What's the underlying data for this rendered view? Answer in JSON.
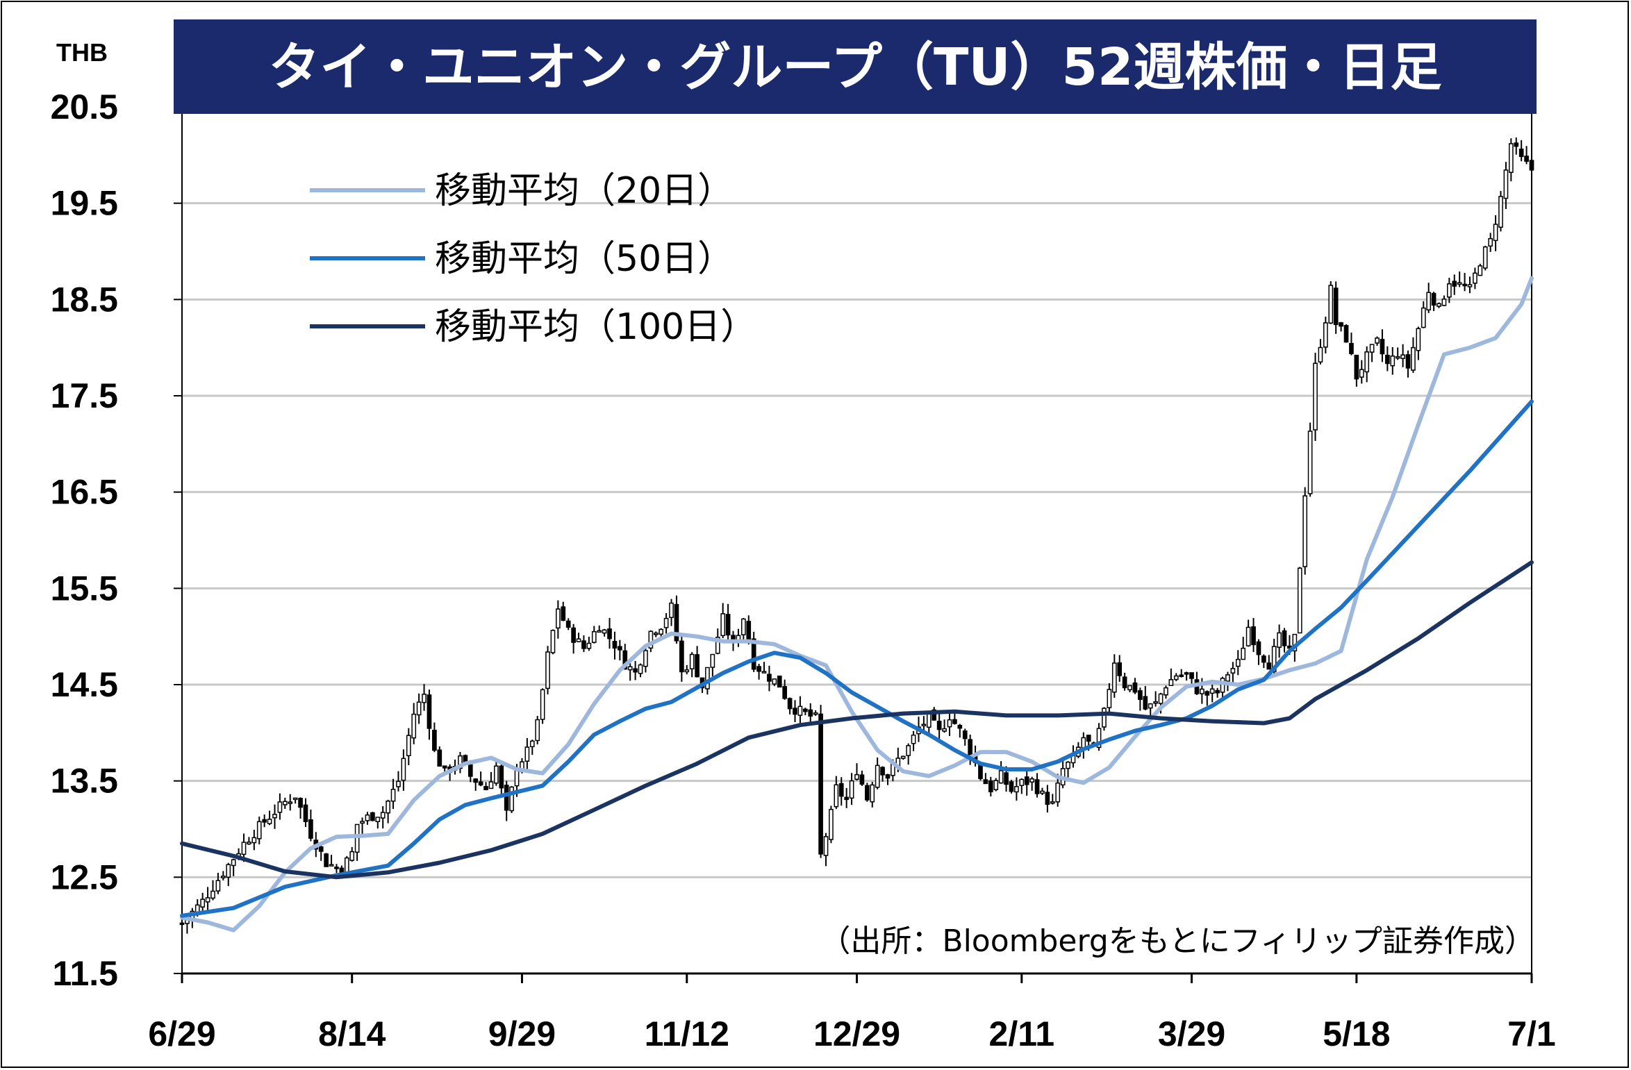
{
  "chart_data": {
    "type": "candlestick",
    "title": "タイ・ユニオン・グループ（TU）52週株価・日足",
    "unit_label": "THB",
    "source": "（出所：Bloombergをもとにフィリップ証券作成）",
    "ylim": [
      11.5,
      20.5
    ],
    "y_ticks": [
      "20.5",
      "19.5",
      "18.5",
      "17.5",
      "16.5",
      "15.5",
      "14.5",
      "13.5",
      "12.5",
      "11.5"
    ],
    "x_ticks": [
      "6/29",
      "8/14",
      "9/29",
      "11/12",
      "12/29",
      "2/11",
      "3/29",
      "5/18",
      "7/1"
    ],
    "grid": true,
    "legend_position": "top-left",
    "colors": {
      "title_bg": "#1a2a6c",
      "candle_up": "#ffffff",
      "candle_down": "#000000",
      "ma20": "#9db8dc",
      "ma50": "#1f72c4",
      "ma100": "#1a3360",
      "grid": "#c8c8c8"
    },
    "series": [
      {
        "name": "移動平均（20日）",
        "key": "ma20",
        "points": [
          [
            0,
            12.08
          ],
          [
            5,
            12.03
          ],
          [
            10,
            11.95
          ],
          [
            15,
            12.2
          ],
          [
            20,
            12.55
          ],
          [
            25,
            12.8
          ],
          [
            30,
            12.92
          ],
          [
            35,
            12.93
          ],
          [
            40,
            12.95
          ],
          [
            45,
            13.3
          ],
          [
            50,
            13.55
          ],
          [
            55,
            13.68
          ],
          [
            60,
            13.74
          ],
          [
            65,
            13.62
          ],
          [
            70,
            13.58
          ],
          [
            75,
            13.88
          ],
          [
            80,
            14.3
          ],
          [
            85,
            14.65
          ],
          [
            90,
            14.9
          ],
          [
            95,
            15.03
          ],
          [
            100,
            15.0
          ],
          [
            105,
            14.95
          ],
          [
            110,
            14.95
          ],
          [
            115,
            14.92
          ],
          [
            120,
            14.8
          ],
          [
            125,
            14.7
          ],
          [
            130,
            14.22
          ],
          [
            135,
            13.82
          ],
          [
            140,
            13.6
          ],
          [
            145,
            13.55
          ],
          [
            150,
            13.66
          ],
          [
            155,
            13.8
          ],
          [
            160,
            13.8
          ],
          [
            165,
            13.7
          ],
          [
            170,
            13.54
          ],
          [
            175,
            13.48
          ],
          [
            180,
            13.64
          ],
          [
            185,
            13.96
          ],
          [
            190,
            14.26
          ],
          [
            195,
            14.48
          ],
          [
            200,
            14.53
          ],
          [
            205,
            14.5
          ],
          [
            210,
            14.56
          ],
          [
            215,
            14.65
          ],
          [
            220,
            14.72
          ],
          [
            225,
            14.85
          ],
          [
            230,
            15.8
          ],
          [
            235,
            16.45
          ],
          [
            240,
            17.2
          ],
          [
            245,
            17.93
          ],
          [
            250,
            18.0
          ],
          [
            255,
            18.1
          ],
          [
            260,
            18.45
          ],
          [
            262,
            18.72
          ]
        ]
      },
      {
        "name": "移動平均（50日）",
        "key": "ma50",
        "points": [
          [
            0,
            12.1
          ],
          [
            10,
            12.18
          ],
          [
            20,
            12.4
          ],
          [
            30,
            12.52
          ],
          [
            40,
            12.62
          ],
          [
            45,
            12.85
          ],
          [
            50,
            13.1
          ],
          [
            55,
            13.25
          ],
          [
            60,
            13.32
          ],
          [
            70,
            13.45
          ],
          [
            75,
            13.7
          ],
          [
            80,
            13.98
          ],
          [
            85,
            14.12
          ],
          [
            90,
            14.25
          ],
          [
            95,
            14.32
          ],
          [
            100,
            14.47
          ],
          [
            105,
            14.62
          ],
          [
            110,
            14.74
          ],
          [
            115,
            14.83
          ],
          [
            120,
            14.78
          ],
          [
            125,
            14.62
          ],
          [
            130,
            14.42
          ],
          [
            135,
            14.27
          ],
          [
            140,
            14.12
          ],
          [
            145,
            13.98
          ],
          [
            150,
            13.82
          ],
          [
            155,
            13.68
          ],
          [
            160,
            13.62
          ],
          [
            165,
            13.62
          ],
          [
            170,
            13.7
          ],
          [
            175,
            13.83
          ],
          [
            180,
            13.93
          ],
          [
            185,
            14.02
          ],
          [
            190,
            14.08
          ],
          [
            195,
            14.15
          ],
          [
            200,
            14.28
          ],
          [
            205,
            14.45
          ],
          [
            210,
            14.55
          ],
          [
            215,
            14.85
          ],
          [
            220,
            15.08
          ],
          [
            225,
            15.3
          ],
          [
            230,
            15.58
          ],
          [
            240,
            16.15
          ],
          [
            250,
            16.72
          ],
          [
            262,
            17.44
          ]
        ]
      },
      {
        "name": "移動平均（100日）",
        "key": "ma100",
        "points": [
          [
            0,
            12.85
          ],
          [
            10,
            12.72
          ],
          [
            20,
            12.56
          ],
          [
            30,
            12.5
          ],
          [
            40,
            12.55
          ],
          [
            50,
            12.65
          ],
          [
            60,
            12.78
          ],
          [
            70,
            12.95
          ],
          [
            80,
            13.2
          ],
          [
            90,
            13.45
          ],
          [
            100,
            13.68
          ],
          [
            110,
            13.95
          ],
          [
            120,
            14.08
          ],
          [
            130,
            14.15
          ],
          [
            140,
            14.2
          ],
          [
            150,
            14.22
          ],
          [
            160,
            14.18
          ],
          [
            170,
            14.18
          ],
          [
            180,
            14.2
          ],
          [
            190,
            14.15
          ],
          [
            200,
            14.12
          ],
          [
            210,
            14.1
          ],
          [
            215,
            14.15
          ],
          [
            220,
            14.35
          ],
          [
            230,
            14.65
          ],
          [
            240,
            14.98
          ],
          [
            250,
            15.35
          ],
          [
            262,
            15.77
          ]
        ]
      }
    ],
    "ohlc_anchor_closes": [
      [
        0,
        12.02
      ],
      [
        4,
        12.25
      ],
      [
        8,
        12.55
      ],
      [
        12,
        12.85
      ],
      [
        16,
        13.08
      ],
      [
        20,
        13.28
      ],
      [
        22,
        13.35
      ],
      [
        25,
        12.95
      ],
      [
        28,
        12.65
      ],
      [
        31,
        12.58
      ],
      [
        33,
        12.75
      ],
      [
        34,
        13.05
      ],
      [
        36,
        13.12
      ],
      [
        39,
        13.18
      ],
      [
        42,
        13.5
      ],
      [
        45,
        14.2
      ],
      [
        47,
        14.4
      ],
      [
        49,
        13.8
      ],
      [
        51,
        13.58
      ],
      [
        54,
        13.72
      ],
      [
        56,
        13.55
      ],
      [
        59,
        13.42
      ],
      [
        61,
        13.65
      ],
      [
        63,
        13.15
      ],
      [
        65,
        13.65
      ],
      [
        67,
        13.8
      ],
      [
        69,
        14.08
      ],
      [
        71,
        14.8
      ],
      [
        73,
        15.3
      ],
      [
        75,
        15.05
      ],
      [
        78,
        14.88
      ],
      [
        81,
        15.12
      ],
      [
        84,
        14.92
      ],
      [
        86,
        14.72
      ],
      [
        88,
        14.62
      ],
      [
        91,
        15.05
      ],
      [
        93,
        15.12
      ],
      [
        95,
        15.3
      ],
      [
        97,
        14.62
      ],
      [
        99,
        14.78
      ],
      [
        101,
        14.48
      ],
      [
        103,
        14.82
      ],
      [
        105,
        15.18
      ],
      [
        107,
        14.9
      ],
      [
        109,
        15.2
      ],
      [
        111,
        14.72
      ],
      [
        113,
        14.62
      ],
      [
        116,
        14.5
      ],
      [
        118,
        14.28
      ],
      [
        120,
        14.22
      ],
      [
        123,
        14.15
      ],
      [
        124,
        12.72
      ],
      [
        126,
        13.15
      ],
      [
        127,
        13.42
      ],
      [
        129,
        13.3
      ],
      [
        131,
        13.62
      ],
      [
        133,
        13.32
      ],
      [
        135,
        13.68
      ],
      [
        137,
        13.55
      ],
      [
        139,
        13.72
      ],
      [
        141,
        13.85
      ],
      [
        143,
        14.05
      ],
      [
        145,
        14.15
      ],
      [
        147,
        14.0
      ],
      [
        149,
        14.18
      ],
      [
        151,
        14.02
      ],
      [
        153,
        13.82
      ],
      [
        155,
        13.55
      ],
      [
        157,
        13.42
      ],
      [
        159,
        13.55
      ],
      [
        161,
        13.4
      ],
      [
        163,
        13.48
      ],
      [
        165,
        13.5
      ],
      [
        167,
        13.35
      ],
      [
        169,
        13.25
      ],
      [
        171,
        13.62
      ],
      [
        173,
        13.72
      ],
      [
        175,
        13.95
      ],
      [
        177,
        13.82
      ],
      [
        179,
        14.2
      ],
      [
        181,
        14.75
      ],
      [
        183,
        14.5
      ],
      [
        185,
        14.45
      ],
      [
        187,
        14.25
      ],
      [
        189,
        14.3
      ],
      [
        191,
        14.5
      ],
      [
        193,
        14.6
      ],
      [
        195,
        14.6
      ],
      [
        197,
        14.45
      ],
      [
        199,
        14.4
      ],
      [
        201,
        14.42
      ],
      [
        203,
        14.62
      ],
      [
        205,
        14.72
      ],
      [
        207,
        15.1
      ],
      [
        209,
        14.85
      ],
      [
        211,
        14.72
      ],
      [
        213,
        14.98
      ],
      [
        215,
        14.82
      ],
      [
        216,
        14.98
      ],
      [
        218,
        16.5
      ],
      [
        220,
        17.8
      ],
      [
        222,
        18.3
      ],
      [
        223,
        18.6
      ],
      [
        224,
        18.25
      ],
      [
        226,
        18.1
      ],
      [
        228,
        17.7
      ],
      [
        230,
        17.9
      ],
      [
        232,
        18.05
      ],
      [
        234,
        17.82
      ],
      [
        236,
        17.95
      ],
      [
        238,
        17.8
      ],
      [
        240,
        18.2
      ],
      [
        242,
        18.6
      ],
      [
        244,
        18.4
      ],
      [
        246,
        18.7
      ],
      [
        248,
        18.65
      ],
      [
        250,
        18.6
      ],
      [
        252,
        18.9
      ],
      [
        254,
        19.1
      ],
      [
        256,
        19.55
      ],
      [
        258,
        20.12
      ],
      [
        260,
        19.95
      ],
      [
        262,
        19.85
      ]
    ]
  }
}
